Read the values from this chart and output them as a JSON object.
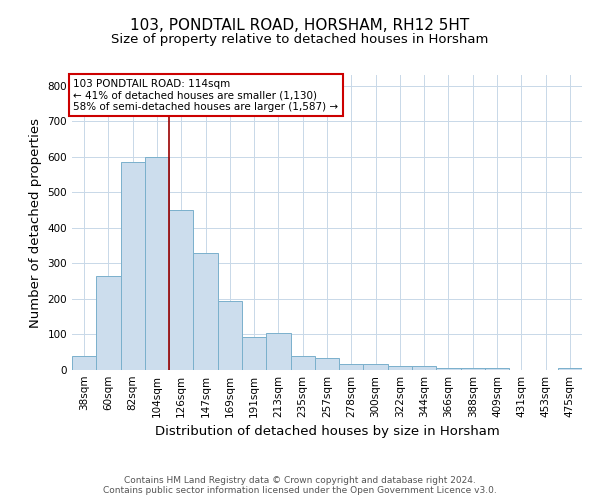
{
  "title": "103, PONDTAIL ROAD, HORSHAM, RH12 5HT",
  "subtitle": "Size of property relative to detached houses in Horsham",
  "xlabel": "Distribution of detached houses by size in Horsham",
  "ylabel": "Number of detached properties",
  "categories": [
    "38sqm",
    "60sqm",
    "82sqm",
    "104sqm",
    "126sqm",
    "147sqm",
    "169sqm",
    "191sqm",
    "213sqm",
    "235sqm",
    "257sqm",
    "278sqm",
    "300sqm",
    "322sqm",
    "344sqm",
    "366sqm",
    "388sqm",
    "409sqm",
    "431sqm",
    "453sqm",
    "475sqm"
  ],
  "values": [
    38,
    265,
    585,
    600,
    450,
    330,
    195,
    93,
    103,
    38,
    33,
    18,
    18,
    10,
    10,
    5,
    5,
    5,
    0,
    0,
    7
  ],
  "bar_color": "#ccdded",
  "bar_edge_color": "#7ab0cc",
  "vline_x": 3.5,
  "vline_color": "#990000",
  "annotation_text": "103 PONDTAIL ROAD: 114sqm\n← 41% of detached houses are smaller (1,130)\n58% of semi-detached houses are larger (1,587) →",
  "annotation_box_color": "#ffffff",
  "annotation_box_edge": "#cc0000",
  "ylim": [
    0,
    830
  ],
  "yticks": [
    0,
    100,
    200,
    300,
    400,
    500,
    600,
    700,
    800
  ],
  "footer": "Contains HM Land Registry data © Crown copyright and database right 2024.\nContains public sector information licensed under the Open Government Licence v3.0.",
  "bg_color": "#ffffff",
  "grid_color": "#c8d8e8",
  "title_fontsize": 11,
  "subtitle_fontsize": 9.5,
  "axis_label_fontsize": 9.5,
  "tick_fontsize": 7.5,
  "annotation_fontsize": 7.5,
  "footer_fontsize": 6.5
}
